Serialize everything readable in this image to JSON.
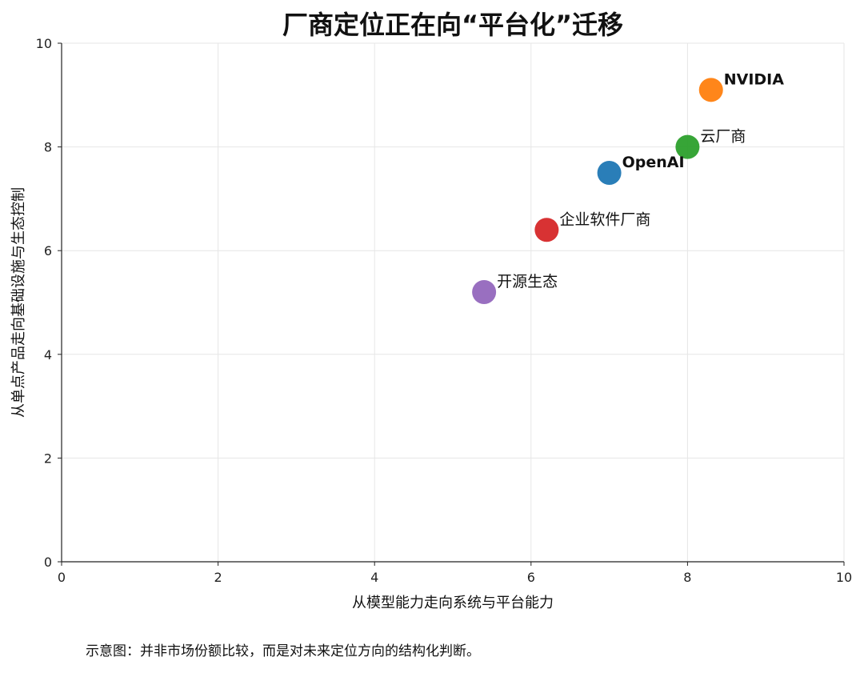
{
  "chart_data": {
    "type": "scatter",
    "title": "厂商定位正在向“平台化”迁移",
    "xlabel": "从模型能力走向系统与平台能力",
    "ylabel": "从单点产品走向基础设施与生态控制",
    "xlim": [
      0,
      10
    ],
    "ylim": [
      0,
      10
    ],
    "xticks": [
      0,
      2,
      4,
      6,
      8,
      10
    ],
    "yticks": [
      0,
      2,
      4,
      6,
      8,
      10
    ],
    "grid": true,
    "points": [
      {
        "label": "NVIDIA",
        "x": 8.3,
        "y": 9.1,
        "color": "#ff7f0e",
        "bold": true
      },
      {
        "label": "云厂商",
        "x": 8.0,
        "y": 8.0,
        "color": "#2ca02c",
        "bold": false
      },
      {
        "label": "OpenAI",
        "x": 7.0,
        "y": 7.5,
        "color": "#1f77b4",
        "bold": true
      },
      {
        "label": "企业软件厂商",
        "x": 6.2,
        "y": 6.4,
        "color": "#d62728",
        "bold": false
      },
      {
        "label": "开源生态",
        "x": 5.4,
        "y": 5.2,
        "color": "#9467bd",
        "bold": false
      }
    ]
  },
  "footnote": "示意图：并非市场份额比较，而是对未来定位方向的结构化判断。"
}
